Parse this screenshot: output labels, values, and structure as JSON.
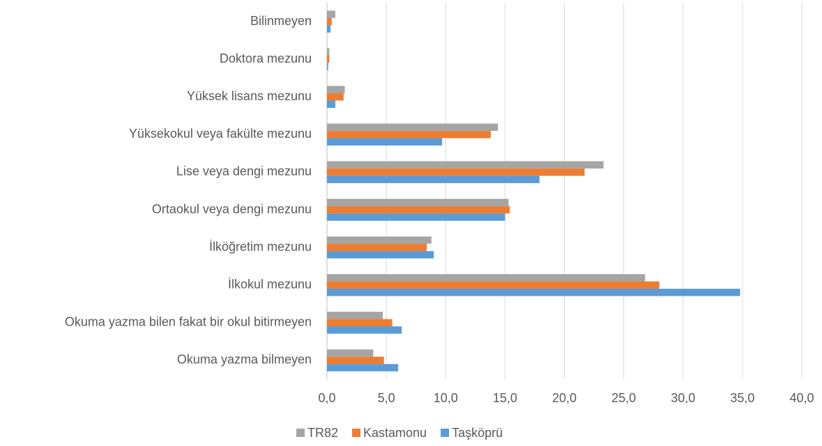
{
  "chart_data": {
    "type": "bar",
    "orientation": "horizontal",
    "categories": [
      "Okuma yazma bilmeyen",
      "Okuma yazma bilen fakat bir okul bitirmeyen",
      "İlkokul mezunu",
      "İlköğretim mezunu",
      "Ortaokul veya dengi mezunu",
      "Lise veya dengi mezunu",
      "Yüksekokul veya fakülte mezunu",
      "Yüksek lisans mezunu",
      "Doktora mezunu",
      "Bilinmeyen"
    ],
    "series": [
      {
        "name": "TR82",
        "color": "#a5a5a5",
        "values": [
          3.9,
          4.7,
          26.8,
          8.8,
          15.3,
          23.3,
          14.4,
          1.5,
          0.2,
          0.7
        ]
      },
      {
        "name": "Kastamonu",
        "color": "#ed7d31",
        "values": [
          4.8,
          5.5,
          28.0,
          8.4,
          15.4,
          21.7,
          13.8,
          1.4,
          0.2,
          0.4
        ]
      },
      {
        "name": "Taşköprü",
        "color": "#5b9bd5",
        "values": [
          6.0,
          6.3,
          34.8,
          9.0,
          15.0,
          17.9,
          9.7,
          0.7,
          0.1,
          0.3
        ]
      }
    ],
    "xlim": [
      0,
      40
    ],
    "xticks": [
      {
        "value": 0,
        "label": "0,0"
      },
      {
        "value": 5,
        "label": "5,0"
      },
      {
        "value": 10,
        "label": "10,0"
      },
      {
        "value": 15,
        "label": "15,0"
      },
      {
        "value": 20,
        "label": "20,0"
      },
      {
        "value": 25,
        "label": "25,0"
      },
      {
        "value": 30,
        "label": "30,0"
      },
      {
        "value": 35,
        "label": "35,0"
      },
      {
        "value": 40,
        "label": "40,0"
      }
    ],
    "grid": true,
    "legend": "bottom"
  }
}
